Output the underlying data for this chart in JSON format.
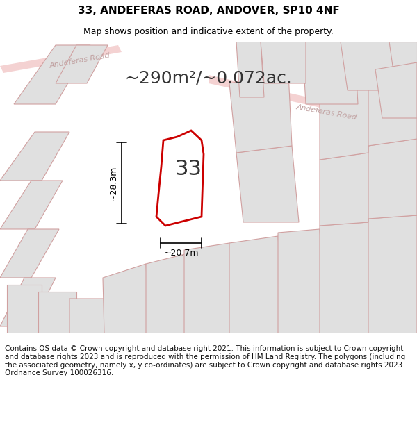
{
  "title": "33, ANDEFERAS ROAD, ANDOVER, SP10 4NF",
  "subtitle": "Map shows position and indicative extent of the property.",
  "footer": "Contains OS data © Crown copyright and database right 2021. This information is subject to Crown copyright and database rights 2023 and is reproduced with the permission of HM Land Registry. The polygons (including the associated geometry, namely x, y co-ordinates) are subject to Crown copyright and database rights 2023 Ordnance Survey 100026316.",
  "area_label": "~290m²/~0.072ac.",
  "width_label": "~20.7m",
  "height_label": "~28.3m",
  "number_label": "33",
  "background_color": "#f5f5f5",
  "map_bg": "#f0eeee",
  "road_color": "#f0c0c0",
  "plot_color": "#cc0000",
  "plot_fill": "#ffffff",
  "parcel_fill": "#e0e0e0",
  "parcel_stroke": "#d0a0a0",
  "title_color": "#000000",
  "label_color": "#000000",
  "road_text_color": "#c0a0a0",
  "title_fontsize": 11,
  "subtitle_fontsize": 9,
  "footer_fontsize": 7.5,
  "area_fontsize": 18,
  "dim_fontsize": 9,
  "num_fontsize": 22
}
